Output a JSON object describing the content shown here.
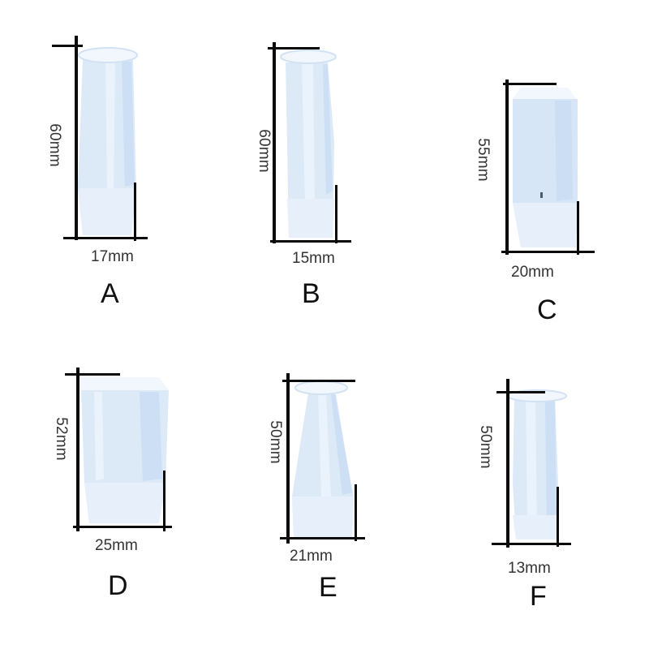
{
  "colors": {
    "silicone": "#dce9f7",
    "silicone_shade": "#c9dcf2",
    "rim": "#f2f7fd",
    "measure_line": "#0a0a0a",
    "label_text": "#333333",
    "letter_text": "#111111"
  },
  "molds": [
    {
      "letter": "A",
      "height": "60mm",
      "width": "17mm"
    },
    {
      "letter": "B",
      "height": "60mm",
      "width": "15mm"
    },
    {
      "letter": "C",
      "height": "55mm",
      "width": "20mm"
    },
    {
      "letter": "D",
      "height": "52mm",
      "width": "25mm"
    },
    {
      "letter": "E",
      "height": "50mm",
      "width": "21mm"
    },
    {
      "letter": "F",
      "height": "50mm",
      "width": "13mm"
    }
  ]
}
